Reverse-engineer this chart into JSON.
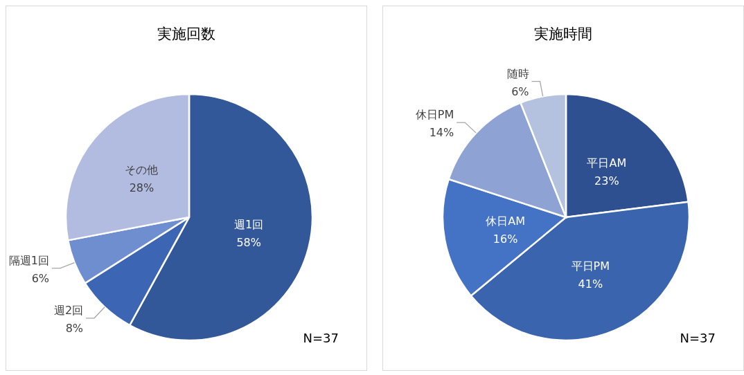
{
  "chart_data": [
    {
      "type": "pie",
      "title": "実施回数",
      "categories": [
        "週1回",
        "週2回",
        "隔週1回",
        "その他"
      ],
      "values": [
        58,
        8,
        6,
        28
      ],
      "value_labels": [
        "58%",
        "8%",
        "6%",
        "28%"
      ],
      "colors": [
        "#33589a",
        "#3c66b3",
        "#6e8ed0",
        "#b2bce0"
      ],
      "legend": false,
      "annotations": [
        "N=37"
      ]
    },
    {
      "type": "pie",
      "title": "実施時間",
      "categories": [
        "平日AM",
        "平日PM",
        "休日AM",
        "休日PM",
        "随時"
      ],
      "values": [
        23,
        41,
        16,
        14,
        6
      ],
      "value_labels": [
        "23%",
        "41%",
        "16%",
        "14%",
        "6%"
      ],
      "colors": [
        "#2e5090",
        "#3a64ae",
        "#4472c4",
        "#8fa2d4",
        "#b4c2e0"
      ],
      "legend": false,
      "annotations": [
        "N=37"
      ]
    }
  ]
}
